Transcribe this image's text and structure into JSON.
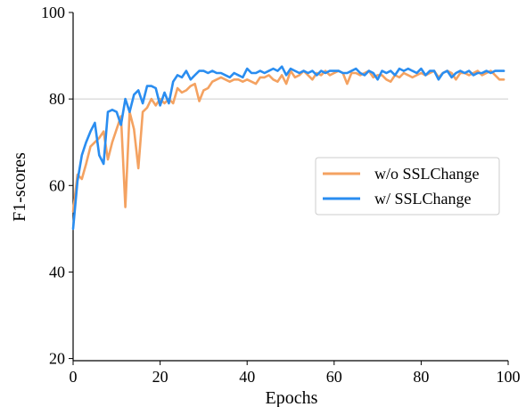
{
  "chart_data": {
    "type": "line",
    "xlabel": "Epochs",
    "ylabel": "F1-scores",
    "xlim": [
      0,
      100
    ],
    "ylim": [
      19.5,
      100
    ],
    "xticks": [
      0,
      20,
      40,
      60,
      80,
      100
    ],
    "yticks": [
      20,
      40,
      60,
      80,
      100
    ],
    "reference_line": 80,
    "legend_position": "right",
    "series": [
      {
        "name": "w/o SSLChange",
        "color": "#f4a261",
        "x": [
          0,
          1,
          2,
          3,
          4,
          5,
          6,
          7,
          8,
          9,
          10,
          11,
          12,
          13,
          14,
          15,
          16,
          17,
          18,
          19,
          20,
          21,
          22,
          23,
          24,
          25,
          26,
          27,
          28,
          29,
          30,
          31,
          32,
          33,
          34,
          35,
          36,
          37,
          38,
          39,
          40,
          41,
          42,
          43,
          44,
          45,
          46,
          47,
          48,
          49,
          50,
          51,
          52,
          53,
          54,
          55,
          56,
          57,
          58,
          59,
          60,
          61,
          62,
          63,
          64,
          65,
          66,
          67,
          68,
          69,
          70,
          71,
          72,
          73,
          74,
          75,
          76,
          77,
          78,
          79,
          80,
          81,
          82,
          83,
          84,
          85,
          86,
          87,
          88,
          89,
          90,
          91,
          92,
          93,
          94,
          95,
          96,
          97,
          98,
          99
        ],
        "y": [
          54.0,
          62.5,
          61.5,
          65.0,
          69.0,
          70.0,
          71.0,
          72.5,
          66.0,
          70.0,
          73.0,
          76.0,
          55.0,
          77.0,
          73.0,
          64.0,
          77.0,
          78.0,
          80.0,
          78.5,
          80.0,
          79.0,
          80.0,
          79.0,
          82.5,
          81.5,
          82.0,
          83.0,
          83.5,
          79.5,
          82.0,
          82.5,
          84.0,
          84.5,
          85.0,
          84.5,
          84.0,
          84.5,
          84.5,
          84.0,
          84.5,
          84.0,
          83.5,
          85.0,
          85.0,
          85.5,
          84.5,
          84.0,
          85.5,
          83.5,
          86.5,
          85.0,
          85.5,
          86.5,
          85.5,
          84.5,
          86.0,
          85.5,
          86.5,
          85.5,
          86.0,
          86.5,
          86.0,
          83.5,
          86.0,
          86.0,
          85.5,
          86.0,
          86.5,
          85.0,
          85.5,
          85.5,
          84.5,
          84.0,
          85.5,
          85.0,
          86.0,
          85.5,
          85.0,
          85.5,
          86.0,
          85.5,
          86.0,
          86.5,
          85.0,
          86.0,
          86.5,
          86.0,
          84.5,
          86.0,
          86.0,
          85.5,
          86.0,
          86.5,
          85.5,
          86.0,
          86.5,
          85.5,
          84.5,
          84.5
        ]
      },
      {
        "name": "w/ SSLChange",
        "color": "#2a8df0",
        "x": [
          0,
          1,
          2,
          3,
          4,
          5,
          6,
          7,
          8,
          9,
          10,
          11,
          12,
          13,
          14,
          15,
          16,
          17,
          18,
          19,
          20,
          21,
          22,
          23,
          24,
          25,
          26,
          27,
          28,
          29,
          30,
          31,
          32,
          33,
          34,
          35,
          36,
          37,
          38,
          39,
          40,
          41,
          42,
          43,
          44,
          45,
          46,
          47,
          48,
          49,
          50,
          51,
          52,
          53,
          54,
          55,
          56,
          57,
          58,
          59,
          60,
          61,
          62,
          63,
          64,
          65,
          66,
          67,
          68,
          69,
          70,
          71,
          72,
          73,
          74,
          75,
          76,
          77,
          78,
          79,
          80,
          81,
          82,
          83,
          84,
          85,
          86,
          87,
          88,
          89,
          90,
          91,
          92,
          93,
          94,
          95,
          96,
          97,
          98,
          99
        ],
        "y": [
          50.0,
          61.0,
          67.0,
          70.0,
          72.5,
          74.5,
          67.0,
          65.0,
          77.0,
          77.5,
          77.0,
          74.0,
          80.0,
          77.0,
          81.0,
          82.0,
          79.0,
          83.0,
          83.0,
          82.5,
          78.5,
          81.5,
          79.0,
          84.0,
          85.5,
          85.0,
          86.5,
          84.5,
          85.5,
          86.5,
          86.5,
          86.0,
          86.5,
          86.0,
          86.0,
          85.5,
          85.0,
          86.0,
          85.5,
          85.0,
          87.0,
          86.0,
          86.0,
          86.5,
          86.0,
          86.5,
          87.0,
          86.5,
          87.5,
          85.5,
          87.0,
          86.5,
          86.0,
          86.5,
          86.0,
          86.5,
          85.5,
          86.5,
          86.0,
          86.5,
          86.5,
          86.5,
          86.0,
          86.0,
          86.5,
          87.0,
          86.0,
          85.5,
          86.5,
          86.0,
          84.5,
          86.5,
          86.0,
          86.5,
          85.5,
          87.0,
          86.5,
          87.0,
          86.5,
          86.0,
          87.0,
          85.5,
          86.5,
          86.5,
          84.5,
          86.0,
          86.5,
          85.0,
          86.0,
          86.5,
          86.0,
          86.5,
          85.5,
          86.0,
          86.0,
          86.5,
          86.0,
          86.5,
          86.5,
          86.5
        ]
      }
    ]
  }
}
